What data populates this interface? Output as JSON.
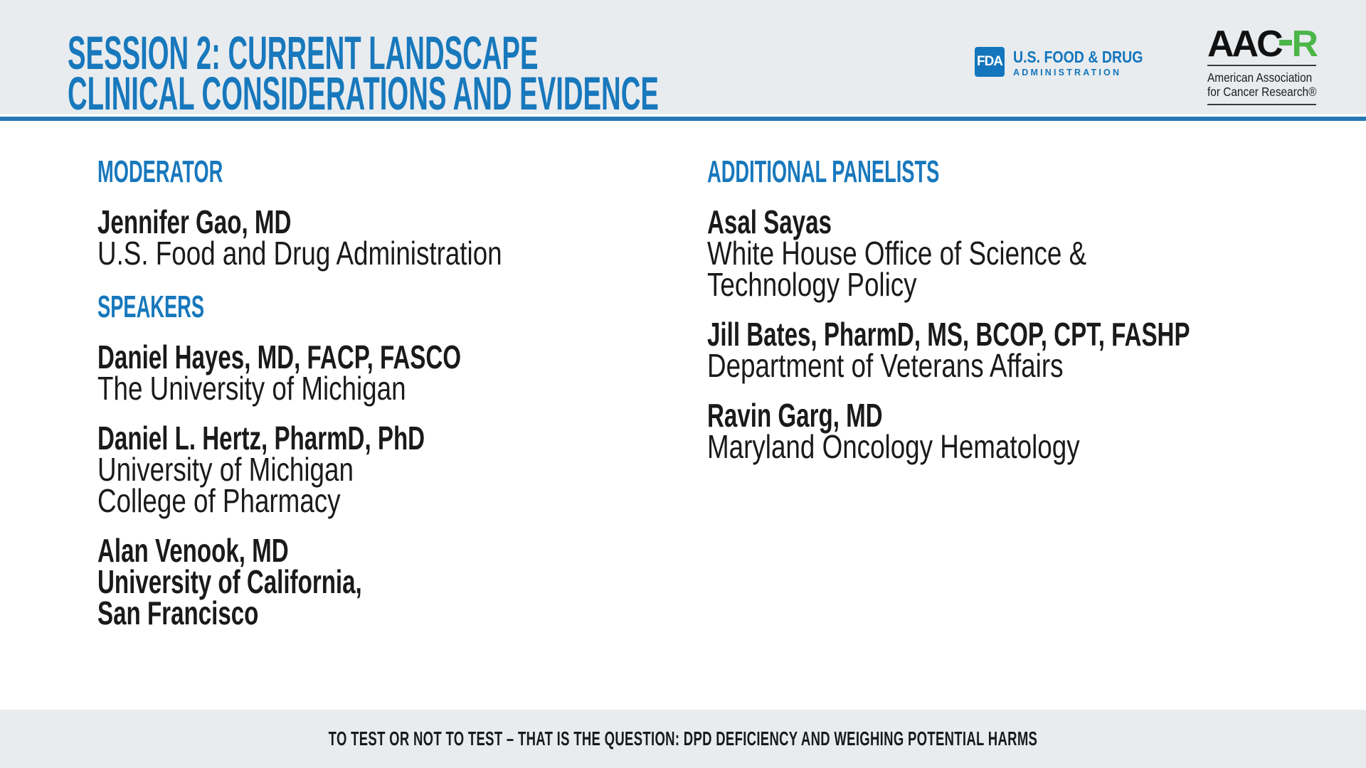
{
  "header": {
    "title_line1": "SESSION 2: CURRENT LANDSCAPE",
    "title_line2": "CLINICAL CONSIDERATIONS AND EVIDENCE",
    "fda": {
      "abbr": "FDA",
      "name_line1": "U.S. FOOD & DRUG",
      "name_line2": "ADMINISTRATION"
    },
    "aacr": {
      "wordmark_black": "AAC",
      "wordmark_green": "R",
      "tagline_line1": "American Association",
      "tagline_line2": "for Cancer Research®"
    }
  },
  "sections": [
    {
      "id": "moderator",
      "column": "left",
      "heading": "MODERATOR",
      "people": [
        {
          "name": "Jennifer Gao, MD",
          "affiliation_lines": [
            "U.S. Food and Drug Administration"
          ],
          "affiliation_bold": false
        }
      ]
    },
    {
      "id": "speakers",
      "column": "left",
      "heading": "SPEAKERS",
      "people": [
        {
          "name": "Daniel Hayes, MD, FACP, FASCO",
          "affiliation_lines": [
            "The University of Michigan"
          ],
          "affiliation_bold": false
        },
        {
          "name": "Daniel L. Hertz, PharmD, PhD",
          "affiliation_lines": [
            "University of Michigan",
            "College of Pharmacy"
          ],
          "affiliation_bold": false
        },
        {
          "name": "Alan Venook, MD",
          "affiliation_lines": [
            "University of California,",
            "San Francisco"
          ],
          "affiliation_bold": true
        }
      ]
    },
    {
      "id": "additional-panelists",
      "column": "right",
      "heading": "ADDITIONAL PANELISTS",
      "people": [
        {
          "name": "Asal Sayas",
          "affiliation_lines": [
            "White House Office of Science &",
            "Technology Policy"
          ],
          "affiliation_bold": false
        },
        {
          "name": "Jill Bates, PharmD, MS, BCOP, CPT, FASHP",
          "affiliation_lines": [
            "Department of Veterans Affairs"
          ],
          "affiliation_bold": false
        },
        {
          "name": "Ravin Garg, MD",
          "affiliation_lines": [
            "Maryland Oncology Hematology"
          ],
          "affiliation_bold": false
        }
      ]
    }
  ],
  "footer": {
    "text": "TO TEST OR NOT TO TEST – THAT IS THE QUESTION: DPD DEFICIENCY AND WEIGHING POTENTIAL HARMS"
  },
  "colors": {
    "accent_blue": "#1878BC",
    "divider_blue": "#2579B5",
    "band_gray": "#E8ECEF",
    "fda_blue": "#1375BC",
    "aacr_green": "#4CB648",
    "text_dark": "#1A1A1A"
  }
}
